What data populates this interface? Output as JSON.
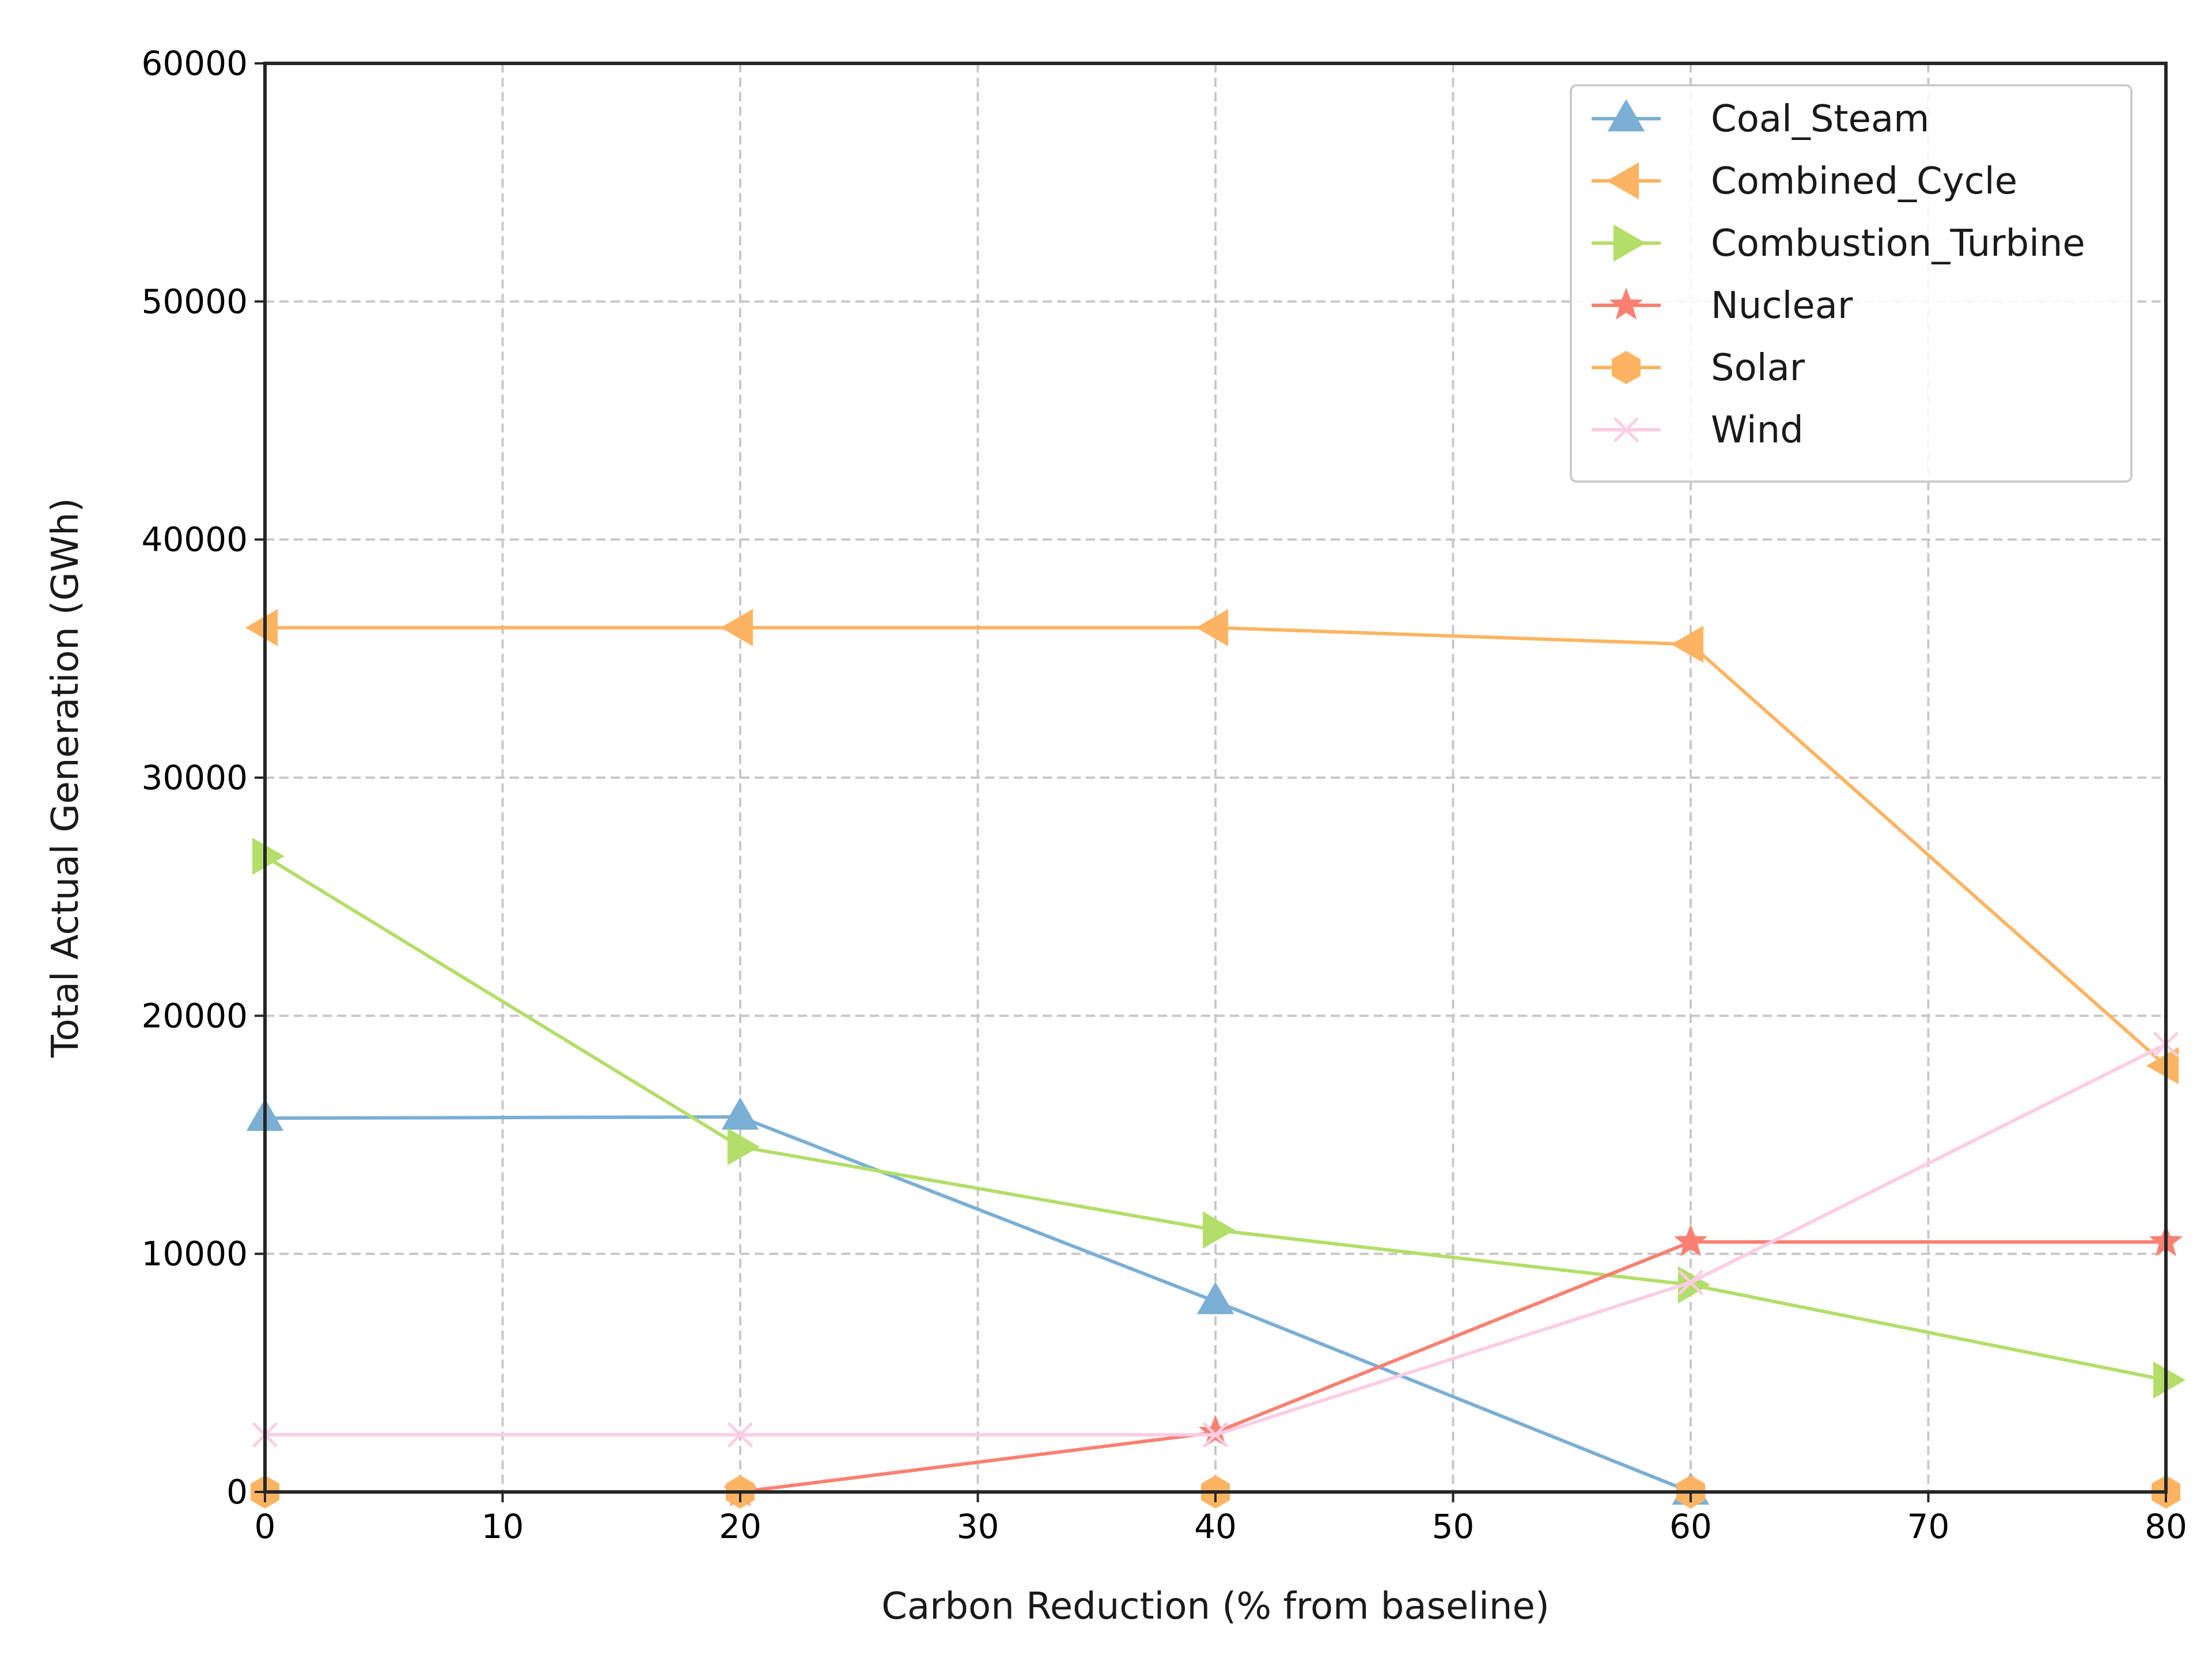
{
  "chart_data": {
    "type": "line",
    "xlabel": "Carbon Reduction (% from baseline)",
    "ylabel": "Total Actual Generation (GWh)",
    "xlim": [
      0,
      80
    ],
    "ylim": [
      0,
      60000
    ],
    "xticks": [
      0,
      10,
      20,
      30,
      40,
      50,
      60,
      70,
      80
    ],
    "yticks": [
      0,
      10000,
      20000,
      30000,
      40000,
      50000,
      60000
    ],
    "grid": true,
    "legend_position": "top-right",
    "x": [
      0,
      20,
      40,
      60,
      80
    ],
    "series": [
      {
        "name": "Coal_Steam",
        "values": [
          15700,
          15750,
          8000,
          0,
          null
        ],
        "color": "#7bafd4",
        "marker": "triangle-up"
      },
      {
        "name": "Combined_Cycle",
        "values": [
          36300,
          36300,
          36300,
          35600,
          17900
        ],
        "color": "#fdb462",
        "marker": "triangle-left"
      },
      {
        "name": "Combustion_Turbine",
        "values": [
          26700,
          14500,
          11000,
          8700,
          4700
        ],
        "color": "#b3de69",
        "marker": "triangle-right"
      },
      {
        "name": "Nuclear",
        "values": [
          null,
          0,
          2500,
          10500,
          10500
        ],
        "color": "#fb8072",
        "marker": "star"
      },
      {
        "name": "Solar",
        "values": [
          0,
          0,
          0,
          0,
          0
        ],
        "color": "#fdb462",
        "marker": "hexagon"
      },
      {
        "name": "Wind",
        "values": [
          2400,
          2400,
          2400,
          8800,
          18800
        ],
        "color": "#fccde5",
        "marker": "x"
      }
    ]
  }
}
